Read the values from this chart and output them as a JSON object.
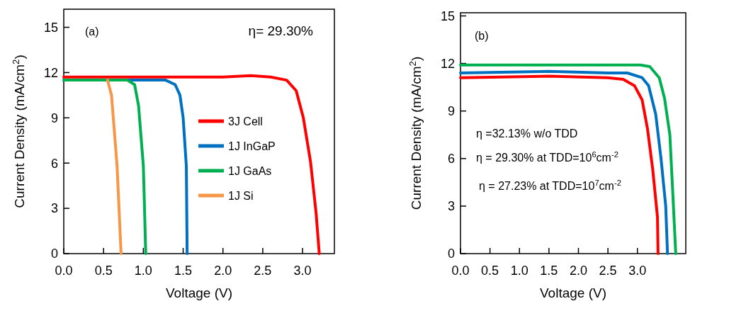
{
  "chart_data": [
    {
      "type": "line",
      "xlabel": "Voltage (V)",
      "ylabel": "Current Density (mA/cm$^{2}$)",
      "xlim": [
        0,
        3.4
      ],
      "ylim": [
        0,
        16.2
      ],
      "xticks": [
        {
          "value": 0,
          "label": "0.0"
        },
        0.5,
        {
          "value": 1,
          "label": "1.0"
        },
        1.5,
        {
          "value": 2,
          "label": "2.0"
        },
        2.5,
        {
          "value": 3,
          "label": "3.0"
        }
      ],
      "yticks": [
        0,
        3,
        6,
        9,
        12,
        15
      ],
      "legend": "right",
      "line_style": "solid",
      "marker": "none",
      "annotations": [
        "(a)",
        "η= 29.30%"
      ],
      "series": [
        {
          "name": "3J Cell",
          "color": "#ff0000",
          "x": [
            0,
            1.5,
            2.0,
            2.35,
            2.6,
            2.8,
            2.92,
            3.01,
            3.1,
            3.17,
            3.21
          ],
          "values": [
            11.7,
            11.7,
            11.7,
            11.8,
            11.7,
            11.5,
            10.8,
            9.0,
            6.1,
            2.7,
            0
          ]
        },
        {
          "name": "1J InGaP",
          "color": "#0070c0",
          "x": [
            0,
            1.28,
            1.4,
            1.46,
            1.5,
            1.54,
            1.55
          ],
          "values": [
            11.5,
            11.5,
            11.2,
            10.5,
            9.0,
            5.8,
            0
          ]
        },
        {
          "name": "1J GaAs",
          "color": "#00b050",
          "x": [
            0,
            0.8,
            0.89,
            0.94,
            1.0,
            1.03
          ],
          "values": [
            11.5,
            11.5,
            11.2,
            9.8,
            5.8,
            0
          ]
        },
        {
          "name": "1J Si",
          "color": "#f79646",
          "x": [
            0.55,
            0.6,
            0.67,
            0.72
          ],
          "values": [
            11.5,
            10.5,
            5.8,
            0
          ]
        }
      ]
    },
    {
      "type": "line",
      "xlabel": "Voltage (V)",
      "ylabel": "Current Density (mA/cm$^{2}$)",
      "xlim": [
        0,
        3.82
      ],
      "ylim": [
        0,
        15.2
      ],
      "xticks": [
        {
          "value": 0,
          "label": "0.0"
        },
        0.5,
        {
          "value": 1,
          "label": "1.0"
        },
        1.5,
        {
          "value": 2,
          "label": "2.0"
        },
        2.5,
        {
          "value": 3,
          "label": "3.0"
        }
      ],
      "yticks": [
        0,
        3,
        6,
        9,
        12,
        15
      ],
      "line_style": "solid",
      "marker": "none",
      "annotations": [
        "(b)",
        "η =32.13% w/o TDD",
        "η = 29.30% at TDD=10$^{6}$cm$^{-2}$",
        "η = 27.23% at TDD=10$^{7}$cm$^{-2}$"
      ],
      "series": [
        {
          "color": "#ff0000",
          "x": [
            0,
            1.5,
            2.5,
            2.76,
            2.95,
            3.08,
            3.17,
            3.26,
            3.34,
            3.35
          ],
          "values": [
            11.1,
            11.2,
            11.1,
            11.0,
            10.6,
            9.7,
            7.9,
            5.3,
            2.3,
            0
          ]
        },
        {
          "color": "#0070c0",
          "x": [
            0,
            1.5,
            2.5,
            2.83,
            3.08,
            3.19,
            3.31,
            3.4,
            3.48,
            3.51
          ],
          "values": [
            11.4,
            11.5,
            11.4,
            11.4,
            11.1,
            10.6,
            8.8,
            6.0,
            3.0,
            0
          ]
        },
        {
          "color": "#00b050",
          "x": [
            0,
            1.5,
            2.8,
            3.05,
            3.21,
            3.37,
            3.46,
            3.55,
            3.6,
            3.65
          ],
          "values": [
            11.9,
            11.9,
            11.9,
            11.9,
            11.8,
            11.1,
            9.8,
            7.5,
            3.8,
            0
          ]
        }
      ]
    }
  ]
}
